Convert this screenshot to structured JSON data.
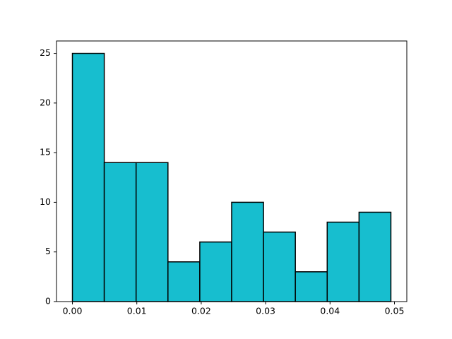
{
  "chart_data": {
    "type": "histogram",
    "bins": [
      0,
      0.004945,
      0.00989,
      0.014835,
      0.01978,
      0.024725,
      0.02967,
      0.034615,
      0.03956,
      0.044505,
      0.04945
    ],
    "values": [
      25,
      14,
      14,
      4,
      6,
      10,
      7,
      3,
      8,
      9
    ],
    "color": "#17becf",
    "edgecolor": "#000000",
    "xlim": [
      -0.00247,
      0.05192
    ],
    "ylim": [
      0,
      26.25
    ],
    "xticks": [
      {
        "value": 0,
        "label": "0.00"
      },
      0.01,
      0.02,
      0.03,
      0.04,
      0.05
    ],
    "yticks": [
      0,
      5,
      10,
      15,
      20,
      25
    ]
  }
}
